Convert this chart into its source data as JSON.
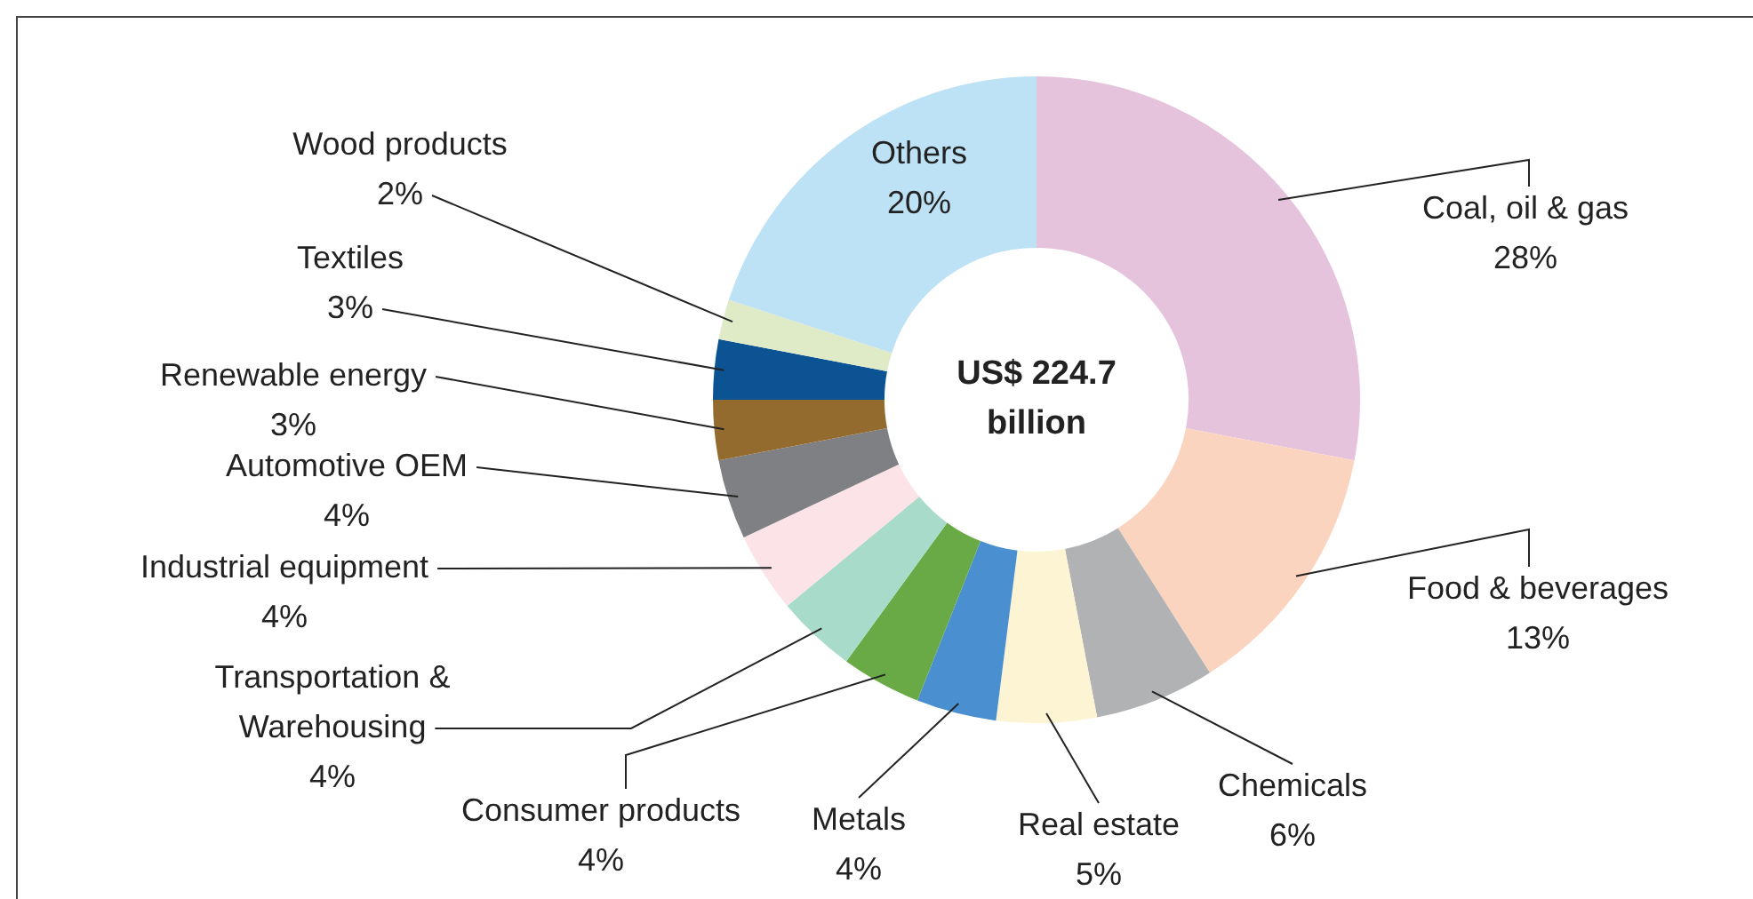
{
  "chart_data": {
    "type": "donut",
    "categories": [
      "Coal, oil & gas",
      "Food & beverages",
      "Chemicals",
      "Real estate",
      "Metals",
      "Consumer products",
      "Transportation & Warehousing",
      "Industrial equipment",
      "Automotive OEM",
      "Renewable energy",
      "Textiles",
      "Wood products",
      "Others"
    ],
    "values": [
      28,
      13,
      6,
      5,
      4,
      4,
      4,
      4,
      4,
      3,
      3,
      2,
      20
    ],
    "value_labels": [
      "28%",
      "13%",
      "6%",
      "5%",
      "4%",
      "4%",
      "4%",
      "4%",
      "4%",
      "3%",
      "3%",
      "2%",
      "20%"
    ],
    "colors": [
      "#e6c3dc",
      "#fbd4c0",
      "#b1b2b4",
      "#fdf4d3",
      "#4a90d0",
      "#6aaa46",
      "#a9dbcb",
      "#fbe3e8",
      "#7f8083",
      "#936b2e",
      "#0b5392",
      "#dfebc7",
      "#bde2f5"
    ],
    "annotations": [
      "US$ 224.7 billion"
    ],
    "legend": false
  }
}
